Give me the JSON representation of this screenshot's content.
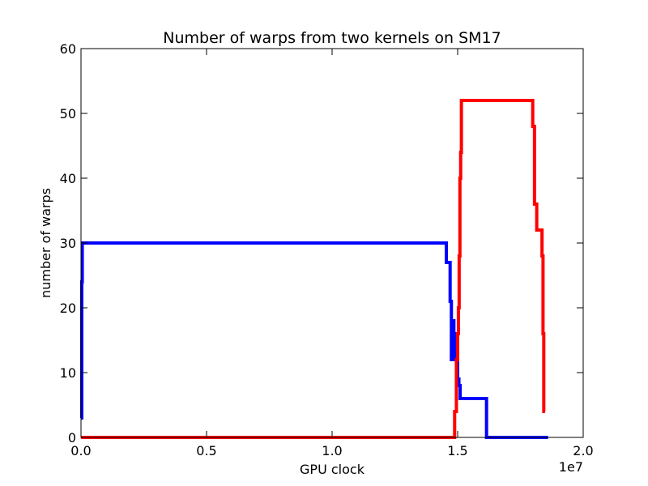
{
  "chart_data": {
    "type": "line",
    "title": "Number of warps from two kernels on SM17",
    "xlabel": "GPU clock",
    "ylabel": "number of warps",
    "x_offset_label": "1e7",
    "xlim": [
      0,
      2.0
    ],
    "ylim": [
      0,
      60
    ],
    "x_ticks": [
      0.0,
      0.5,
      1.0,
      1.5,
      2.0
    ],
    "x_tick_labels": [
      "0.0",
      "0.5",
      "1.0",
      "1.5",
      "2.0"
    ],
    "y_ticks": [
      0,
      10,
      20,
      30,
      40,
      50,
      60
    ],
    "y_tick_labels": [
      "0",
      "10",
      "20",
      "30",
      "40",
      "50",
      "60"
    ],
    "grid": false,
    "series": [
      {
        "color": "#0000ff",
        "x": [
          0.0,
          0.003,
          0.003,
          0.005,
          0.005,
          1.455,
          1.455,
          1.47,
          1.47,
          1.475,
          1.475,
          1.48,
          1.48,
          1.485,
          1.485,
          1.49,
          1.49,
          1.495,
          1.495,
          1.5,
          1.5,
          1.505,
          1.505,
          1.51,
          1.51,
          1.615,
          1.615,
          1.86
        ],
        "y": [
          3,
          3,
          24,
          24,
          30,
          30,
          27,
          27,
          21,
          21,
          12,
          12,
          18,
          18,
          15,
          15,
          12,
          12,
          16,
          16,
          9,
          9,
          8,
          8,
          6,
          6,
          0,
          0
        ]
      },
      {
        "color": "#ff0000",
        "x": [
          0.0,
          1.488,
          1.488,
          1.495,
          1.495,
          1.5,
          1.5,
          1.503,
          1.503,
          1.506,
          1.506,
          1.509,
          1.509,
          1.512,
          1.512,
          1.515,
          1.515,
          1.799,
          1.799,
          1.806,
          1.806,
          1.815,
          1.815,
          1.836,
          1.836,
          1.84,
          1.84,
          1.843,
          1.843,
          1.848
        ],
        "y": [
          0,
          0,
          4,
          4,
          12,
          12,
          16,
          16,
          20,
          20,
          28,
          28,
          40,
          40,
          44,
          44,
          52,
          52,
          48,
          48,
          36,
          36,
          32,
          32,
          28,
          28,
          16,
          16,
          4,
          4
        ]
      }
    ]
  }
}
